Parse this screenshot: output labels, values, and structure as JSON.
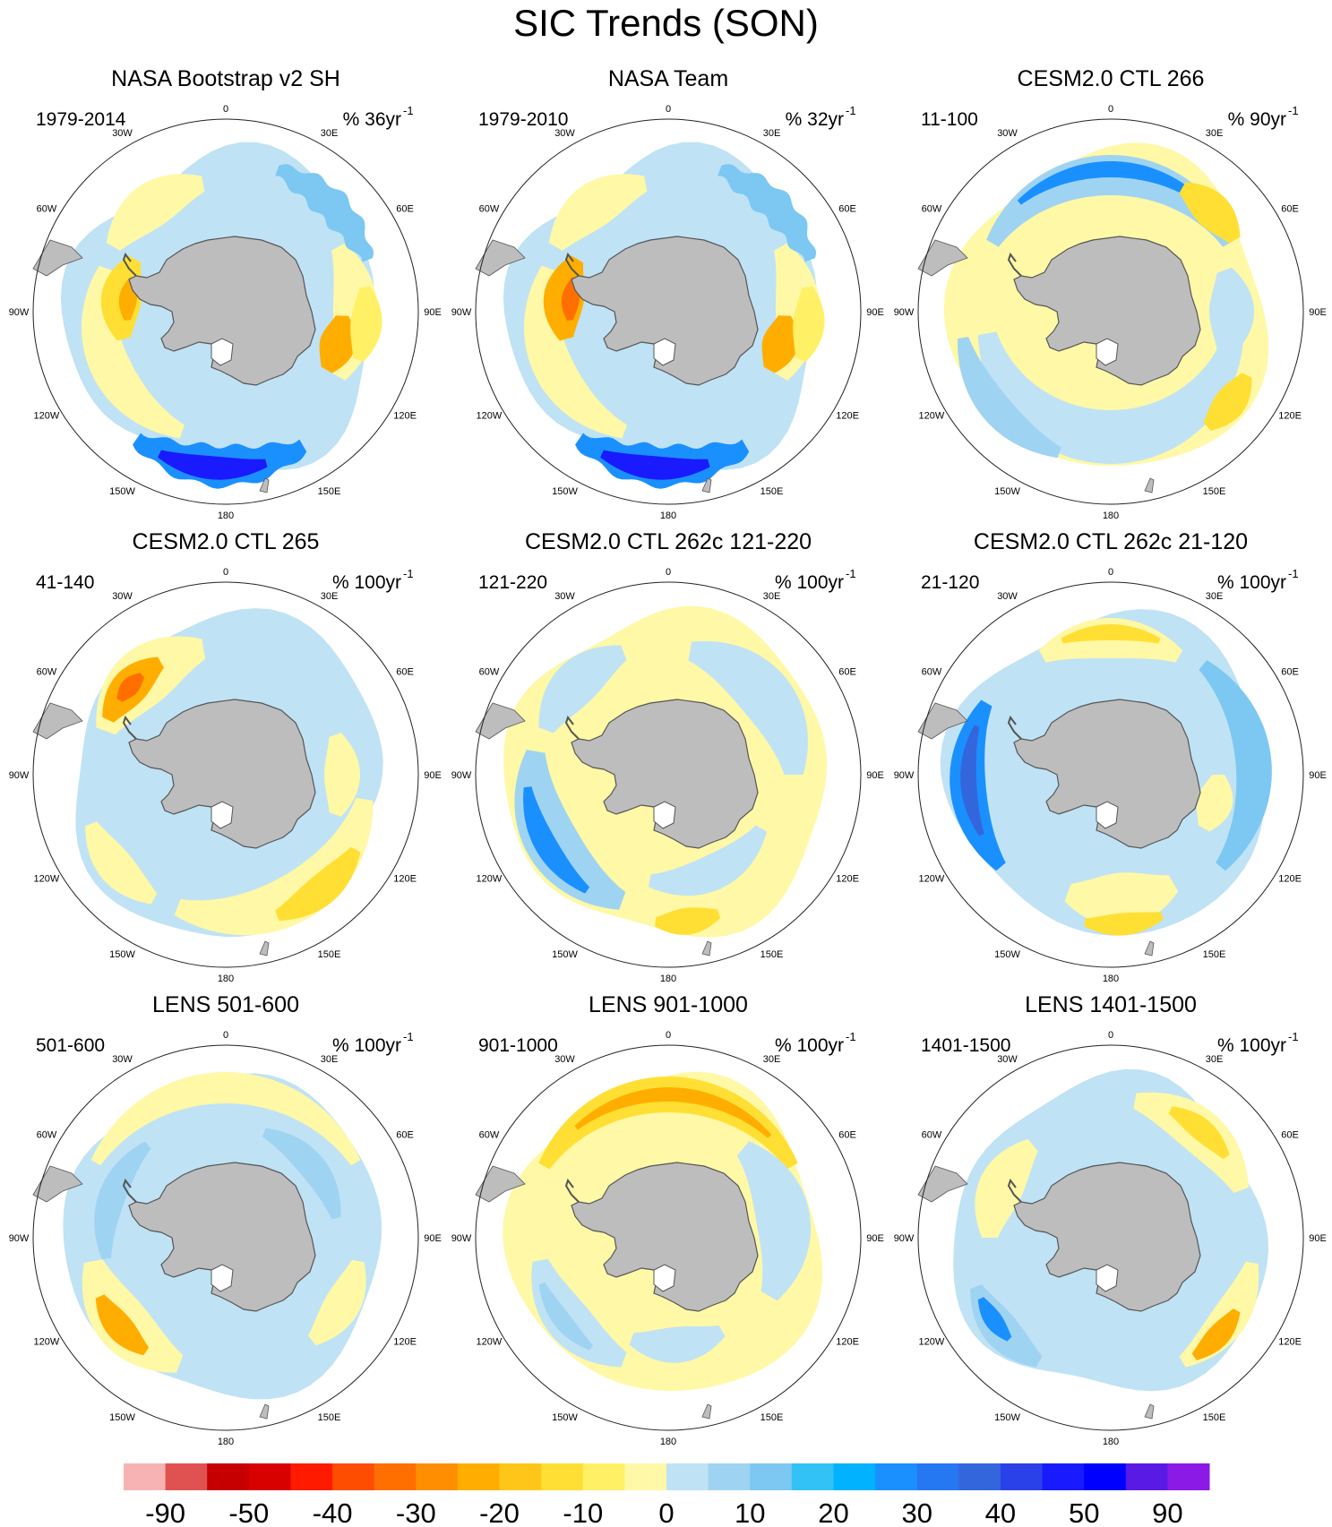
{
  "title": "SIC Trends (SON)",
  "lon_labels": [
    "0",
    "30E",
    "60E",
    "90E",
    "120E",
    "150E",
    "180",
    "150W",
    "120W",
    "90W",
    "60W",
    "30W"
  ],
  "colors": {
    "land": "#bdbdbd",
    "coast": "#555555",
    "circle": "#222222"
  },
  "panels": [
    {
      "title": "NASA Bootstrap v2 SH",
      "period": "1979-2014",
      "units": "% 36yr",
      "exp": "-1",
      "style": "obs1"
    },
    {
      "title": "NASA Team",
      "period": "1979-2010",
      "units": "% 32yr",
      "exp": "-1",
      "style": "obs2"
    },
    {
      "title": "CESM2.0 CTL 266",
      "period": "11-100",
      "units": "% 90yr",
      "exp": "-1",
      "style": "m266"
    },
    {
      "title": "CESM2.0 CTL 265",
      "period": "41-140",
      "units": "% 100yr",
      "exp": "-1",
      "style": "m265"
    },
    {
      "title": "CESM2.0 CTL 262c 121-220",
      "period": "121-220",
      "units": "% 100yr",
      "exp": "-1",
      "style": "m262a"
    },
    {
      "title": "CESM2.0 CTL 262c 21-120",
      "period": "21-120",
      "units": "% 100yr",
      "exp": "-1",
      "style": "m262b"
    },
    {
      "title": "LENS 501-600",
      "period": "501-600",
      "units": "% 100yr",
      "exp": "-1",
      "style": "lens501"
    },
    {
      "title": "LENS 901-1000",
      "period": "901-1000",
      "units": "% 100yr",
      "exp": "-1",
      "style": "lens901"
    },
    {
      "title": "LENS 1401-1500",
      "period": "1401-1500",
      "units": "% 100yr",
      "exp": "-1",
      "style": "lens1401"
    }
  ],
  "chart_data": {
    "type": "heatmap",
    "title": "SIC Trends (SON)",
    "projection": "south polar stereographic",
    "colorbar": {
      "levels": [
        -90,
        -50,
        -40,
        -30,
        -20,
        -10,
        0,
        10,
        20,
        30,
        40,
        50,
        90
      ],
      "level_labels": [
        "-90",
        "-50",
        "-40",
        "-30",
        "-20",
        "-10",
        "0",
        "10",
        "20",
        "30",
        "40",
        "50",
        "90"
      ],
      "colors": [
        "#f7b3b3",
        "#e05252",
        "#c60000",
        "#d90000",
        "#ff1a00",
        "#ff4d00",
        "#ff6f00",
        "#ff8f00",
        "#ffae00",
        "#ffc61a",
        "#ffdf33",
        "#fff066",
        "#fff8a6",
        "#bfe2f5",
        "#9fd3f2",
        "#7cc8f2",
        "#33c2f5",
        "#00b2ff",
        "#1a90ff",
        "#2677f2",
        "#3366dd",
        "#2a40e8",
        "#1a1aff",
        "#0000ff",
        "#5a1ae6",
        "#8c1ae6"
      ]
    }
  }
}
